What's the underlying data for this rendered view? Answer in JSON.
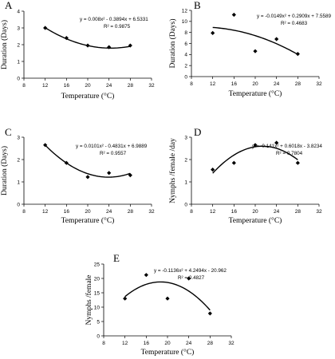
{
  "chart_data": [
    {
      "label": "A",
      "type": "scatter",
      "trendline": "polynomial-2",
      "xlabel": "Temperature (°C)",
      "ylabel": "Duration (Days)",
      "xlim": [
        8,
        32
      ],
      "xticks": [
        8,
        12,
        16,
        20,
        24,
        28,
        32
      ],
      "ylim": [
        0,
        4
      ],
      "yticks": [
        0,
        1,
        2,
        3,
        4
      ],
      "x": [
        12,
        16,
        20,
        24,
        28
      ],
      "y": [
        3.0,
        2.4,
        1.95,
        1.85,
        1.95
      ],
      "coef": [
        0.008,
        -0.3894,
        6.5331
      ],
      "equation": "y = 0.008x² - 0.3894x + 6.5331",
      "r2": "R² = 0.9875"
    },
    {
      "label": "B",
      "type": "scatter",
      "trendline": "polynomial-2",
      "xlabel": "Temperature (°C)",
      "ylabel": "Duration (Days)",
      "xlim": [
        8,
        32
      ],
      "xticks": [
        8,
        12,
        16,
        20,
        24,
        28,
        32
      ],
      "ylim": [
        0,
        12
      ],
      "yticks": [
        0,
        2,
        4,
        6,
        8,
        10,
        12
      ],
      "x": [
        12,
        16,
        20,
        24,
        28
      ],
      "y": [
        7.9,
        11.2,
        4.6,
        6.8,
        4.1
      ],
      "coef": [
        -0.0149,
        0.2909,
        7.5589
      ],
      "equation": "y = -0.0149x² + 0.2909x + 7.5589",
      "r2": "R² = 0.4683"
    },
    {
      "label": "C",
      "type": "scatter",
      "trendline": "polynomial-2",
      "xlabel": "Temperature (°C)",
      "ylabel": "Duration (Days)",
      "xlim": [
        8,
        32
      ],
      "xticks": [
        8,
        12,
        16,
        20,
        24,
        28,
        32
      ],
      "ylim": [
        0,
        3
      ],
      "yticks": [
        0,
        1,
        2,
        3
      ],
      "x": [
        12,
        16,
        20,
        24,
        28
      ],
      "y": [
        2.65,
        1.85,
        1.22,
        1.4,
        1.3
      ],
      "coef": [
        0.0101,
        -0.4831,
        6.9889
      ],
      "equation": "y = 0.0101x² - 0.4831x + 6.9889",
      "r2": "R² = 0.9557"
    },
    {
      "label": "D",
      "type": "scatter",
      "trendline": "polynomial-2",
      "xlabel": "Temperature (°C)",
      "ylabel": "Nymphs /female /day",
      "xlim": [
        8,
        32
      ],
      "xticks": [
        8,
        12,
        16,
        20,
        24,
        28,
        32
      ],
      "ylim": [
        0,
        3
      ],
      "yticks": [
        0,
        1,
        2,
        3
      ],
      "x": [
        12,
        16,
        20,
        24,
        28
      ],
      "y": [
        1.55,
        1.85,
        2.65,
        2.75,
        1.85
      ],
      "coef": [
        -0.141,
        0.6018,
        -3.8234
      ],
      "equation": "y = -0.141x² + 0.6018x - 3.8234",
      "r2": "R² = 0.7804"
    },
    {
      "label": "E",
      "type": "scatter",
      "trendline": "polynomial-2",
      "xlabel": "Temperature (°C)",
      "ylabel": "Nymphs /female",
      "xlim": [
        8,
        32
      ],
      "xticks": [
        8,
        12,
        16,
        20,
        24,
        28,
        32
      ],
      "ylim": [
        0,
        25
      ],
      "yticks": [
        0,
        5,
        10,
        15,
        20,
        25
      ],
      "x": [
        12,
        16,
        20,
        24,
        28
      ],
      "y": [
        13,
        21.2,
        13,
        20,
        7.8
      ],
      "coef": [
        -0.1136,
        4.2494,
        -20.962
      ],
      "equation": "y = -0.1136x² + 4.2494x - 20.962",
      "r2": "R² = 0.4827"
    }
  ]
}
